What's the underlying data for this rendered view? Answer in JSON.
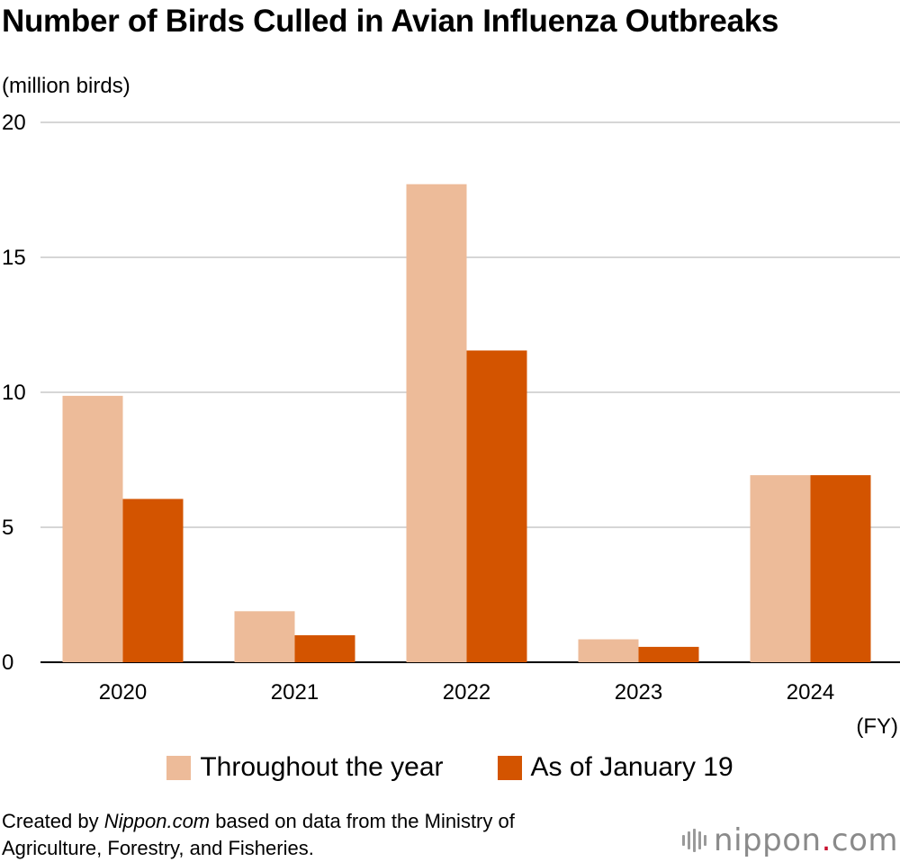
{
  "title": "Number of Birds Culled in Avian Influenza Outbreaks",
  "unit_label": "(million birds)",
  "fy_label": "(FY)",
  "credit": {
    "prefix": "Created by ",
    "site": "Nippon.com",
    "line1_rest": " based on data from the Ministry of",
    "line2": "Agriculture, Forestry, and Fisheries."
  },
  "logo": {
    "name": "nippon",
    "dot": ".",
    "tld": "com",
    "icon": "nippon-logo-bars-icon"
  },
  "chart_data": {
    "type": "bar",
    "categories": [
      "2020",
      "2021",
      "2022",
      "2023",
      "2024"
    ],
    "series": [
      {
        "name": "Throughout the year",
        "color": "#edbb99",
        "values": [
          9.87,
          1.89,
          17.71,
          0.85,
          6.93
        ]
      },
      {
        "name": "As of January 19",
        "color": "#d35400",
        "values": [
          6.05,
          1.0,
          11.55,
          0.57,
          6.93
        ]
      }
    ],
    "ylim": [
      0,
      20
    ],
    "yticks": [
      0,
      5,
      10,
      15,
      20
    ],
    "title": "Number of Birds Culled in Avian Influenza Outbreaks",
    "xlabel": "(FY)",
    "ylabel": "(million birds)",
    "grid": true,
    "legend_position": "bottom"
  }
}
